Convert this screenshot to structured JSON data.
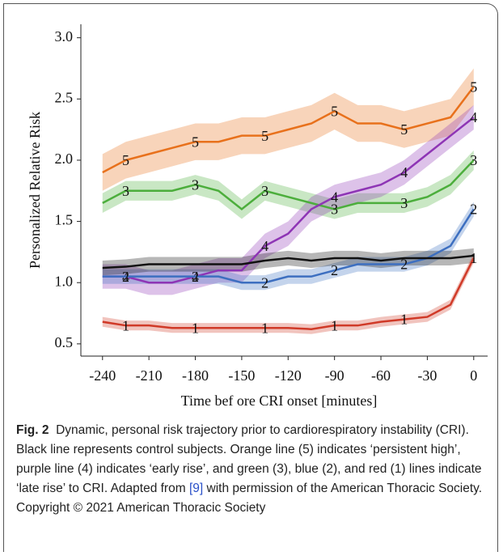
{
  "chart_data": {
    "type": "line",
    "xlabel": "Time bef ore CRI onset [minutes]",
    "ylabel": "Personalized Relative Risk",
    "x": [
      -240,
      -225,
      -210,
      -195,
      -180,
      -165,
      -150,
      -135,
      -120,
      -105,
      -90,
      -75,
      -60,
      -45,
      -30,
      -15,
      0
    ],
    "xlim": [
      -254,
      9
    ],
    "xticks": [
      -240,
      -210,
      -180,
      -150,
      -120,
      -90,
      -60,
      -30,
      0
    ],
    "ylim": [
      0.4,
      3.11
    ],
    "yticks": [
      {
        "value": 0.5,
        "label": "0.5"
      },
      {
        "value": 1.0,
        "label": "1.0"
      },
      {
        "value": 1.5,
        "label": "1.5"
      },
      {
        "value": 2.0,
        "label": "2.0"
      },
      {
        "value": 2.5,
        "label": "2.5"
      },
      {
        "value": 3.0,
        "label": "3.0"
      }
    ],
    "series": [
      {
        "label": "5",
        "color": "#e8711c",
        "band": 0.15,
        "values": [
          1.9,
          2.0,
          2.05,
          2.1,
          2.15,
          2.15,
          2.2,
          2.2,
          2.25,
          2.3,
          2.4,
          2.3,
          2.3,
          2.25,
          2.3,
          2.35,
          2.6
        ]
      },
      {
        "label": "3",
        "color": "#4cae3c",
        "band": 0.08,
        "values": [
          1.65,
          1.75,
          1.75,
          1.75,
          1.8,
          1.75,
          1.6,
          1.75,
          1.7,
          1.65,
          1.6,
          1.65,
          1.65,
          1.65,
          1.7,
          1.8,
          2.0
        ]
      },
      {
        "label": "4",
        "color": "#8e35b5",
        "band": 0.1,
        "values": [
          1.05,
          1.05,
          1.0,
          1.0,
          1.05,
          1.1,
          1.1,
          1.3,
          1.4,
          1.6,
          1.7,
          1.75,
          1.8,
          1.9,
          2.05,
          2.2,
          2.35
        ]
      },
      {
        "label": "2",
        "color": "#3d6fc0",
        "band": 0.06,
        "values": [
          1.05,
          1.05,
          1.05,
          1.05,
          1.05,
          1.05,
          1.0,
          1.0,
          1.05,
          1.05,
          1.1,
          1.15,
          1.15,
          1.15,
          1.2,
          1.3,
          1.6
        ]
      },
      {
        "color": "#111111",
        "band": 0.06,
        "values": [
          1.12,
          1.13,
          1.15,
          1.15,
          1.15,
          1.15,
          1.15,
          1.18,
          1.2,
          1.18,
          1.2,
          1.2,
          1.18,
          1.2,
          1.2,
          1.2,
          1.22
        ]
      },
      {
        "label": "1",
        "color": "#d03a28",
        "band": 0.04,
        "values": [
          0.68,
          0.65,
          0.65,
          0.63,
          0.63,
          0.63,
          0.63,
          0.63,
          0.63,
          0.62,
          0.65,
          0.65,
          0.68,
          0.7,
          0.72,
          0.82,
          1.2
        ]
      }
    ]
  },
  "caption": {
    "label": "Fig. 2",
    "text": "Dynamic, personal risk trajectory prior to cardiorespiratory instability (CRI). Black line represents control subjects. Orange line (5) indicates ‘persistent high’, purple line (4) indicates ‘early rise’, and green (3), blue (2), and red (1) lines indicate ‘late rise’ to CRI. Adapted from",
    "reference": "[9]",
    "text_end": "with permission of the American Thoracic Society. Copyright © 2021 American Thoracic Society"
  }
}
